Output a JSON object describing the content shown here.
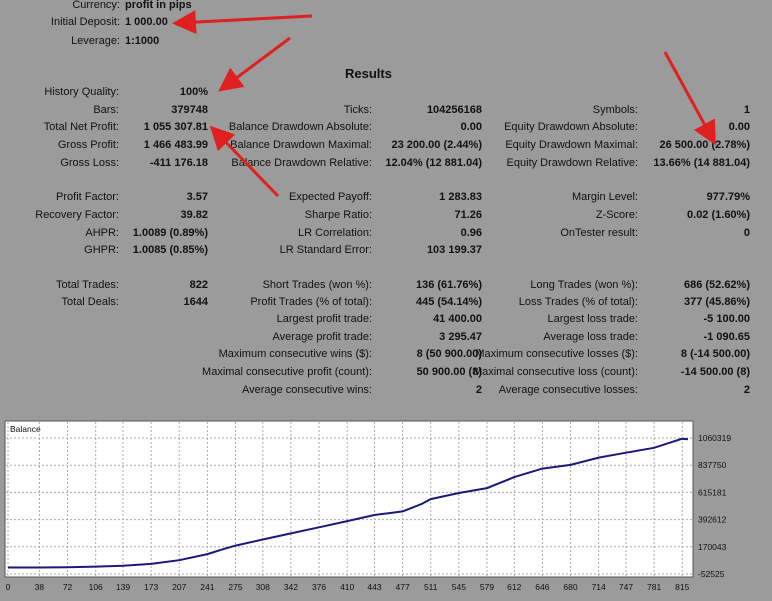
{
  "settings": [
    {
      "label": "Currency:",
      "value": "profit in pips"
    },
    {
      "label": "Initial Deposit:",
      "value": "1 000.00"
    },
    {
      "label": "Leverage:",
      "value": "1:1000"
    }
  ],
  "results_title": "Results",
  "col1": [
    {
      "label": "History Quality:",
      "value": "100%"
    },
    {
      "label": "Bars:",
      "value": "379748"
    },
    {
      "label": "Total Net Profit:",
      "value": "1 055 307.81"
    },
    {
      "label": "Gross Profit:",
      "value": "1 466 483.99"
    },
    {
      "label": "Gross Loss:",
      "value": "-411 176.18"
    },
    {
      "label": "Profit Factor:",
      "value": "3.57"
    },
    {
      "label": "Recovery Factor:",
      "value": "39.82"
    },
    {
      "label": "AHPR:",
      "value": "1.0089 (0.89%)"
    },
    {
      "label": "GHPR:",
      "value": "1.0085 (0.85%)"
    },
    {
      "label": "Total Trades:",
      "value": "822"
    },
    {
      "label": "Total Deals:",
      "value": "1644"
    }
  ],
  "col2": [
    {
      "label": "Ticks:",
      "value": "104256168"
    },
    {
      "label": "Balance Drawdown Absolute:",
      "value": "0.00"
    },
    {
      "label": "Balance Drawdown Maximal:",
      "value": "23 200.00 (2.44%)"
    },
    {
      "label": "Balance Drawdown Relative:",
      "value": "12.04% (12 881.04)"
    },
    {
      "label": "Expected Payoff:",
      "value": "1 283.83"
    },
    {
      "label": "Sharpe Ratio:",
      "value": "71.26"
    },
    {
      "label": "LR Correlation:",
      "value": "0.96"
    },
    {
      "label": "LR Standard Error:",
      "value": "103 199.37"
    },
    {
      "label": "Short Trades (won %):",
      "value": "136 (61.76%)"
    },
    {
      "label": "Profit Trades (% of total):",
      "value": "445 (54.14%)"
    },
    {
      "label": "Largest profit trade:",
      "value": "41 400.00"
    },
    {
      "label": "Average profit trade:",
      "value": "3 295.47"
    },
    {
      "label": "Maximum consecutive wins ($):",
      "value": "8 (50 900.00)"
    },
    {
      "label": "Maximal consecutive profit (count):",
      "value": "50 900.00 (8)"
    },
    {
      "label": "Average consecutive wins:",
      "value": "2"
    }
  ],
  "col3": [
    {
      "label": "Symbols:",
      "value": "1"
    },
    {
      "label": "Equity Drawdown Absolute:",
      "value": "0.00"
    },
    {
      "label": "Equity Drawdown Maximal:",
      "value": "26 500.00 (2.78%)"
    },
    {
      "label": "Equity Drawdown Relative:",
      "value": "13.66% (14 881.04)"
    },
    {
      "label": "Margin Level:",
      "value": "977.79%"
    },
    {
      "label": "Z-Score:",
      "value": "0.02 (1.60%)"
    },
    {
      "label": "OnTester result:",
      "value": "0"
    },
    {
      "label": "Long Trades (won %):",
      "value": "686 (52.62%)"
    },
    {
      "label": "Loss Trades (% of total):",
      "value": "377 (45.86%)"
    },
    {
      "label": "Largest loss trade:",
      "value": "-5 100.00"
    },
    {
      "label": "Average loss trade:",
      "value": "-1 090.65"
    },
    {
      "label": "Maximum consecutive losses ($):",
      "value": "8 (-14 500.00)"
    },
    {
      "label": "Maximal consecutive loss (count):",
      "value": "-14 500.00 (8)"
    },
    {
      "label": "Average consecutive losses:",
      "value": "2"
    }
  ],
  "colors": {
    "background": "#9b9b9b",
    "chart_bg": "#ffffff",
    "balance_line": "#1a1a7a",
    "arrow": "#e02020",
    "grid": "#aaaaaa"
  },
  "chart_data": {
    "type": "line",
    "title": "Balance",
    "xlabel": "",
    "ylabel": "",
    "x_ticks": [
      "0",
      "38",
      "72",
      "106",
      "139",
      "173",
      "207",
      "241",
      "275",
      "308",
      "342",
      "376",
      "410",
      "443",
      "477",
      "511",
      "545",
      "579",
      "612",
      "646",
      "680",
      "714",
      "747",
      "781",
      "815"
    ],
    "y_ticks": [
      "1060319",
      "837750",
      "615181",
      "392612",
      "170043",
      "-52525"
    ],
    "xlim": [
      0,
      822
    ],
    "ylim": [
      -52525,
      1060319
    ],
    "grid": true,
    "series": [
      {
        "x": [
          0,
          38,
          72,
          106,
          139,
          173,
          207,
          241,
          260,
          275,
          308,
          342,
          376,
          410,
          443,
          460,
          477,
          500,
          511,
          545,
          579,
          612,
          646,
          680,
          714,
          747,
          781,
          815,
          822
        ],
        "y": [
          1000,
          1000,
          3000,
          8000,
          15000,
          30000,
          60000,
          110000,
          150000,
          180000,
          230000,
          280000,
          330000,
          380000,
          430000,
          445000,
          460000,
          520000,
          560000,
          610000,
          650000,
          740000,
          810000,
          840000,
          900000,
          940000,
          980000,
          1055000,
          1050000
        ]
      }
    ]
  }
}
